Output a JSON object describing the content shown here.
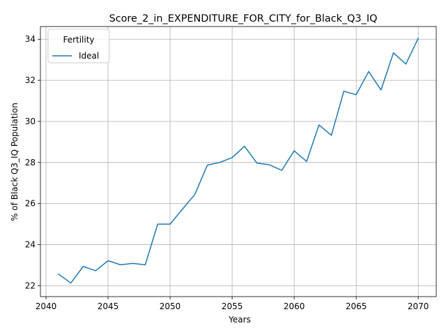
{
  "chart_data": {
    "type": "line",
    "title": "Score_2_in_EXPENDITURE_FOR_CITY_for_Black_Q3_IQ",
    "xlabel": "Years",
    "ylabel": "% of Black Q3_IQ Population",
    "xlim": [
      2039.55,
      2071.45
    ],
    "ylim": [
      21.47,
      34.62
    ],
    "xticks": [
      2040,
      2045,
      2050,
      2055,
      2060,
      2065,
      2070
    ],
    "yticks": [
      22,
      24,
      26,
      28,
      30,
      32,
      34
    ],
    "grid": true,
    "legend": {
      "title": "Fertility",
      "placement": "top-left"
    },
    "series": [
      {
        "name": "Ideal",
        "color": "#1f77b4",
        "x": [
          2041,
          2042,
          2043,
          2044,
          2045,
          2046,
          2047,
          2048,
          2049,
          2050,
          2051,
          2052,
          2053,
          2054,
          2055,
          2056,
          2057,
          2058,
          2059,
          2060,
          2061,
          2062,
          2063,
          2064,
          2065,
          2066,
          2067,
          2068,
          2069,
          2070
        ],
        "values": [
          22.57,
          22.13,
          22.94,
          22.73,
          23.22,
          23.02,
          23.09,
          23.02,
          25.0,
          25.0,
          25.73,
          26.45,
          27.87,
          28.0,
          28.24,
          28.79,
          27.97,
          27.89,
          27.62,
          28.57,
          28.05,
          29.83,
          29.32,
          31.47,
          31.3,
          32.43,
          31.53,
          33.34,
          32.79,
          34.05
        ]
      }
    ]
  }
}
